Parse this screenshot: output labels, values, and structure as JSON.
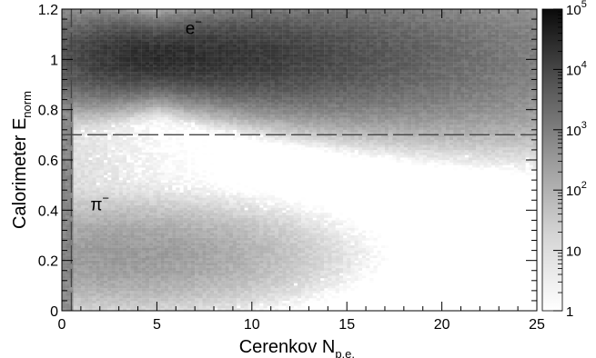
{
  "chart_data": {
    "type": "heatmap",
    "title": "",
    "xlabel": {
      "main": "Cerenkov N",
      "sub": "p.e."
    },
    "ylabel": {
      "main": "Calorimeter  E",
      "sub": "norm"
    },
    "xlim": [
      0,
      25
    ],
    "ylim": [
      0,
      1.2
    ],
    "x_ticks": [
      0,
      5,
      10,
      15,
      20,
      25
    ],
    "x_tick_labels": [
      "0",
      "5",
      "10",
      "15",
      "20",
      "25"
    ],
    "y_ticks": [
      0,
      0.2,
      0.4,
      0.6,
      0.8,
      1,
      1.2
    ],
    "y_tick_labels": [
      "0",
      "0.2",
      "0.4",
      "0.6",
      "0.8",
      "1",
      "1.2"
    ],
    "colorbar": {
      "scale": "log",
      "range": [
        1,
        100000
      ],
      "ticks": [
        {
          "value": 1,
          "label": "1"
        },
        {
          "value": 10,
          "label": "10"
        },
        {
          "value": 100,
          "label": "10",
          "exp": "2"
        },
        {
          "value": 1000,
          "label": "10",
          "exp": "3"
        },
        {
          "value": 10000,
          "label": "10",
          "exp": "4"
        },
        {
          "value": 100000,
          "label": "10",
          "exp": "5"
        }
      ],
      "colormap": "white-to-black grayscale"
    },
    "bins": {
      "nx": 125,
      "ny": 120
    },
    "clusters": [
      {
        "label": "e",
        "sup": "−",
        "x_center": 5.0,
        "y_center": 1.01,
        "peak_counts": 20000,
        "label_x": 6.5,
        "label_y": 1.1
      },
      {
        "label": "π",
        "sup": "−",
        "x_center": 3.0,
        "y_center": 0.22,
        "peak_counts": 120,
        "label_x": 1.5,
        "label_y": 0.4
      }
    ],
    "annotations": [
      {
        "type": "horizontal_dashed_line",
        "y": 0.7
      },
      {
        "type": "vertical_dashed_line",
        "x": 0.5
      }
    ],
    "grid": false
  }
}
